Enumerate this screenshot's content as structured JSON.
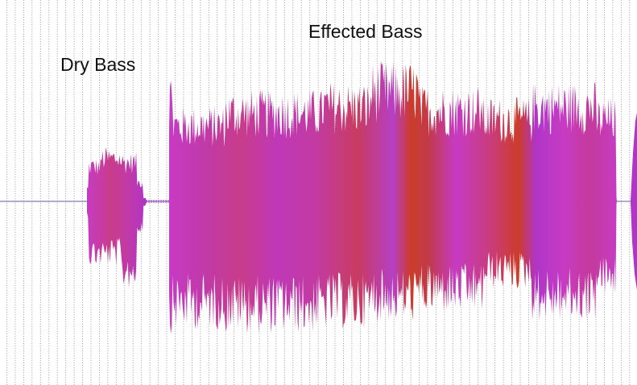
{
  "labels": {
    "dry": "Dry Bass",
    "effected": "Effected Bass"
  },
  "colors": {
    "background": "#ffffff",
    "grid_line": "#9a9a9a",
    "baseline": "#5b5fa0",
    "waveform_magenta": "#c63bc3",
    "waveform_red": "#cc3c2a",
    "waveform_purple": "#b035c8"
  },
  "icons": []
}
